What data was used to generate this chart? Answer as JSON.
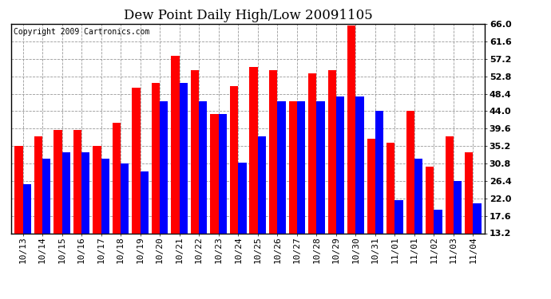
{
  "title": "Dew Point Daily High/Low 20091105",
  "copyright": "Copyright 2009 Cartronics.com",
  "dates": [
    "10/13",
    "10/14",
    "10/15",
    "10/16",
    "10/17",
    "10/18",
    "10/19",
    "10/20",
    "10/21",
    "10/22",
    "10/23",
    "10/24",
    "10/25",
    "10/26",
    "10/27",
    "10/28",
    "10/29",
    "10/30",
    "10/31",
    "11/01",
    "11/01",
    "11/02",
    "11/03",
    "11/04"
  ],
  "high_values": [
    35.2,
    37.6,
    39.2,
    39.2,
    35.2,
    41.0,
    50.0,
    51.2,
    58.0,
    54.4,
    43.2,
    50.4,
    55.2,
    54.4,
    46.4,
    53.6,
    54.4,
    65.6,
    37.0,
    36.0,
    44.0,
    30.0,
    37.6,
    33.6
  ],
  "low_values": [
    25.6,
    32.0,
    33.6,
    33.6,
    32.0,
    30.8,
    28.8,
    46.4,
    51.2,
    46.4,
    43.2,
    31.0,
    37.6,
    46.4,
    46.4,
    46.4,
    47.6,
    47.6,
    44.0,
    21.6,
    32.0,
    19.2,
    26.4,
    20.8
  ],
  "ylim": [
    13.2,
    66.0
  ],
  "yticks": [
    13.2,
    17.6,
    22.0,
    26.4,
    30.8,
    35.2,
    39.6,
    44.0,
    48.4,
    52.8,
    57.2,
    61.6,
    66.0
  ],
  "bar_width": 0.42,
  "high_color": "#ff0000",
  "low_color": "#0000ff",
  "bg_color": "#ffffff",
  "grid_color": "#999999",
  "title_fontsize": 12,
  "tick_fontsize": 8,
  "copyright_fontsize": 7
}
